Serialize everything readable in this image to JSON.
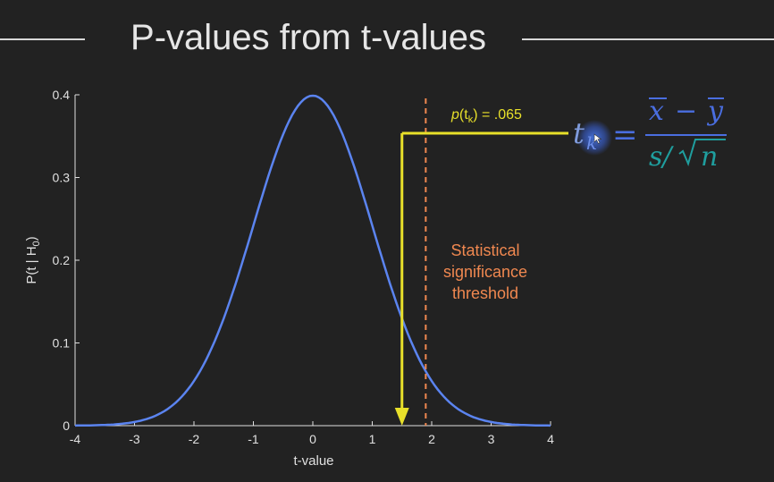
{
  "slide": {
    "title": "P-values from t-values"
  },
  "formula": {
    "lhs": "t",
    "lhs_sub": "k",
    "equals": "=",
    "numerator_left": "x",
    "minus": "−",
    "numerator_right": "y",
    "denominator_s": "s/",
    "denominator_n": "n"
  },
  "annotations": {
    "p_value_label": "p(t",
    "p_value_sub": "k",
    "p_value_rest": ") = .065",
    "threshold_label": [
      "Statistical",
      "significance",
      "threshold"
    ]
  },
  "colors": {
    "curve": "#5b84f0",
    "arrow": "#e8e02a",
    "threshold": "#f08850",
    "axis": "#e0e0e0",
    "formula_main": "#4a6ee0",
    "formula_denominator": "#1f9e9e"
  },
  "chart_data": {
    "type": "line",
    "title": "",
    "xlabel": "t-value",
    "ylabel": "P(t | H0)",
    "ylabel_main": "P(t | H",
    "ylabel_sub": "0",
    "ylabel_close": ")",
    "xlim": [
      -4,
      4
    ],
    "ylim": [
      0,
      0.4
    ],
    "x_ticks": [
      -4,
      -3,
      -2,
      -1,
      0,
      1,
      2,
      3,
      4
    ],
    "y_ticks": [
      0,
      0.1,
      0.2,
      0.3,
      0.4
    ],
    "x_tick_labels": [
      "-4",
      "-3",
      "-2",
      "-1",
      "0",
      "1",
      "2",
      "3",
      "4"
    ],
    "y_tick_labels": [
      "0",
      "0.1",
      "0.2",
      "0.3",
      "0.4"
    ],
    "series": [
      {
        "distribution": "standard normal density",
        "x": [
          -4,
          -3.5,
          -3,
          -2.5,
          -2,
          -1.5,
          -1,
          -0.5,
          0,
          0.5,
          1,
          1.5,
          2,
          2.5,
          3,
          3.5,
          4
        ],
        "y": [
          0.0001,
          0.0009,
          0.0044,
          0.0175,
          0.054,
          0.1295,
          0.242,
          0.3521,
          0.3989,
          0.3521,
          0.242,
          0.1295,
          0.054,
          0.0175,
          0.0044,
          0.0009,
          0.0001
        ]
      }
    ],
    "threshold_x": 1.9,
    "observed_t": 1.5,
    "p_value": 0.065,
    "grid": false,
    "legend": "none"
  }
}
